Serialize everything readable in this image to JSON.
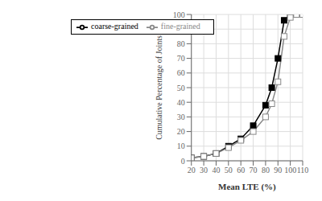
{
  "chart_data": {
    "type": "line",
    "xlabel": "Mean LTE (%)",
    "ylabel": "Cumulative Percentage of Joints",
    "xlim": [
      20,
      110
    ],
    "ylim": [
      0,
      100
    ],
    "xticks": [
      20,
      30,
      40,
      50,
      60,
      70,
      80,
      90,
      100,
      110
    ],
    "yticks": [
      0,
      10,
      20,
      30,
      40,
      50,
      60,
      70,
      80,
      90,
      100
    ],
    "grid": true,
    "legend": "upper left",
    "series": [
      {
        "name": "coarse-grained",
        "color": "#000000",
        "marker": "square",
        "x": [
          20,
          30,
          40,
          50,
          60,
          70,
          80,
          85,
          90,
          95,
          100
        ],
        "values": [
          2,
          3,
          5,
          10,
          15,
          24,
          38,
          50,
          70,
          96,
          100
        ]
      },
      {
        "name": "fine-grained",
        "color": "#888888",
        "marker": "square_open",
        "x": [
          20,
          30,
          40,
          50,
          60,
          70,
          80,
          85,
          90,
          95,
          100,
          105,
          110
        ],
        "values": [
          2,
          3,
          5,
          9,
          14,
          20,
          30,
          39,
          54,
          85,
          98,
          100,
          100
        ]
      }
    ]
  }
}
